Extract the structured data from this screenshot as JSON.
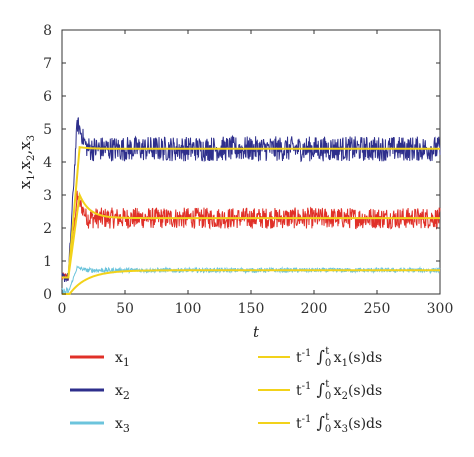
{
  "chart_data": {
    "type": "line",
    "xlabel": "t",
    "ylabel": "x1,x2,x3",
    "xlim": [
      0,
      300
    ],
    "ylim": [
      0,
      8
    ],
    "xticks": [
      "0",
      "50",
      "100",
      "150",
      "200",
      "250",
      "300"
    ],
    "yticks": [
      "0",
      "1",
      "2",
      "3",
      "4",
      "5",
      "6",
      "7",
      "8"
    ],
    "grid": false,
    "legend_position": "bottom",
    "series": [
      {
        "name": "x1",
        "kind": "noisy",
        "color": "#e03028",
        "mean": 2.3,
        "noise": 0.32,
        "start": 0.5,
        "peak": 2.9
      },
      {
        "name": "x2",
        "kind": "noisy",
        "color": "#2e2f8c",
        "mean": 4.4,
        "noise": 0.38,
        "start": 0.5,
        "peak": 5.2
      },
      {
        "name": "x3",
        "kind": "noisy",
        "color": "#6cc4dc",
        "mean": 0.72,
        "noise": 0.07,
        "start": 0.05,
        "peak": 0.8
      },
      {
        "name": "t^-1 ∫0^t x1(s)ds",
        "kind": "average",
        "color": "#f2d21a",
        "mean": 2.3,
        "peak": 3.0,
        "start": 0.5
      },
      {
        "name": "t^-1 ∫0^t x2(s)ds",
        "kind": "average",
        "color": "#f2d21a",
        "mean": 4.4,
        "peak": 4.45,
        "start": 0.5
      },
      {
        "name": "t^-1 ∫0^t x3(s)ds",
        "kind": "average",
        "color": "#f2d21a",
        "mean": 0.72,
        "peak": 0.72,
        "start": 0.05
      }
    ],
    "legend": [
      {
        "label": "x1",
        "sub": "1",
        "base": "x",
        "series": 0,
        "column": 0,
        "row": 0
      },
      {
        "label": "x2",
        "sub": "2",
        "base": "x",
        "series": 1,
        "column": 0,
        "row": 1
      },
      {
        "label": "x3",
        "sub": "3",
        "base": "x",
        "series": 2,
        "column": 0,
        "row": 2
      },
      {
        "label": "t^-1 ∫0^t x1(s)ds",
        "sub": "1",
        "series": 3,
        "column": 1,
        "row": 0
      },
      {
        "label": "t^-1 ∫0^t x2(s)ds",
        "sub": "2",
        "series": 4,
        "column": 1,
        "row": 1
      },
      {
        "label": "t^-1 ∫0^t x3(s)ds",
        "sub": "3",
        "series": 5,
        "column": 1,
        "row": 2
      }
    ]
  }
}
